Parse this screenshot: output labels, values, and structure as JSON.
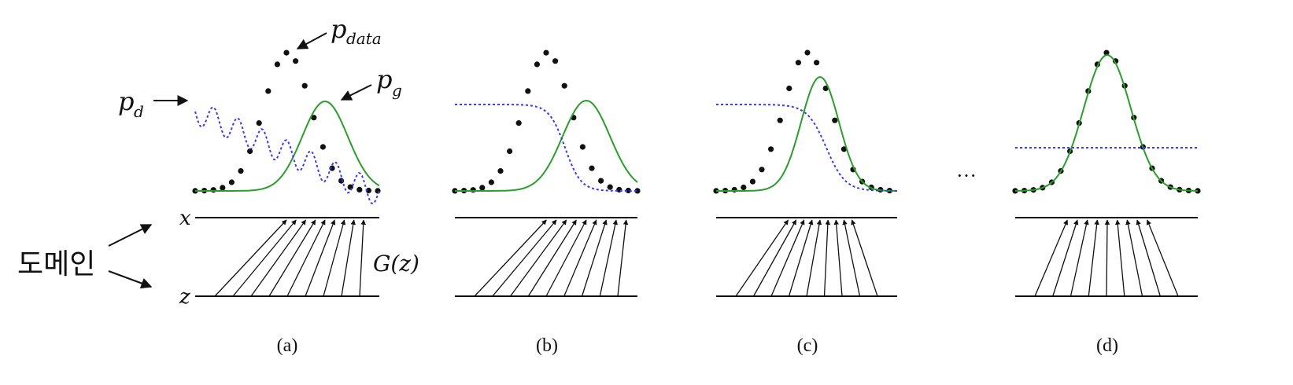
{
  "labels": {
    "p_data": {
      "base": "p",
      "sub": "data"
    },
    "p_g": {
      "base": "p",
      "sub": "g"
    },
    "p_d": {
      "base": "p",
      "sub": "d"
    },
    "x_axis": "x",
    "z_axis": "z",
    "mapping": "G(z)",
    "domain": "도메인",
    "ellipsis": "···"
  },
  "panels": [
    {
      "caption": "(a)"
    },
    {
      "caption": "(b)"
    },
    {
      "caption": "(c)"
    },
    {
      "caption": "(d)"
    }
  ],
  "colors": {
    "data_dots": "#111111",
    "generator_curve": "#2a9d2a",
    "discriminator_curve": "#3a3af0",
    "axis": "#111111"
  }
}
